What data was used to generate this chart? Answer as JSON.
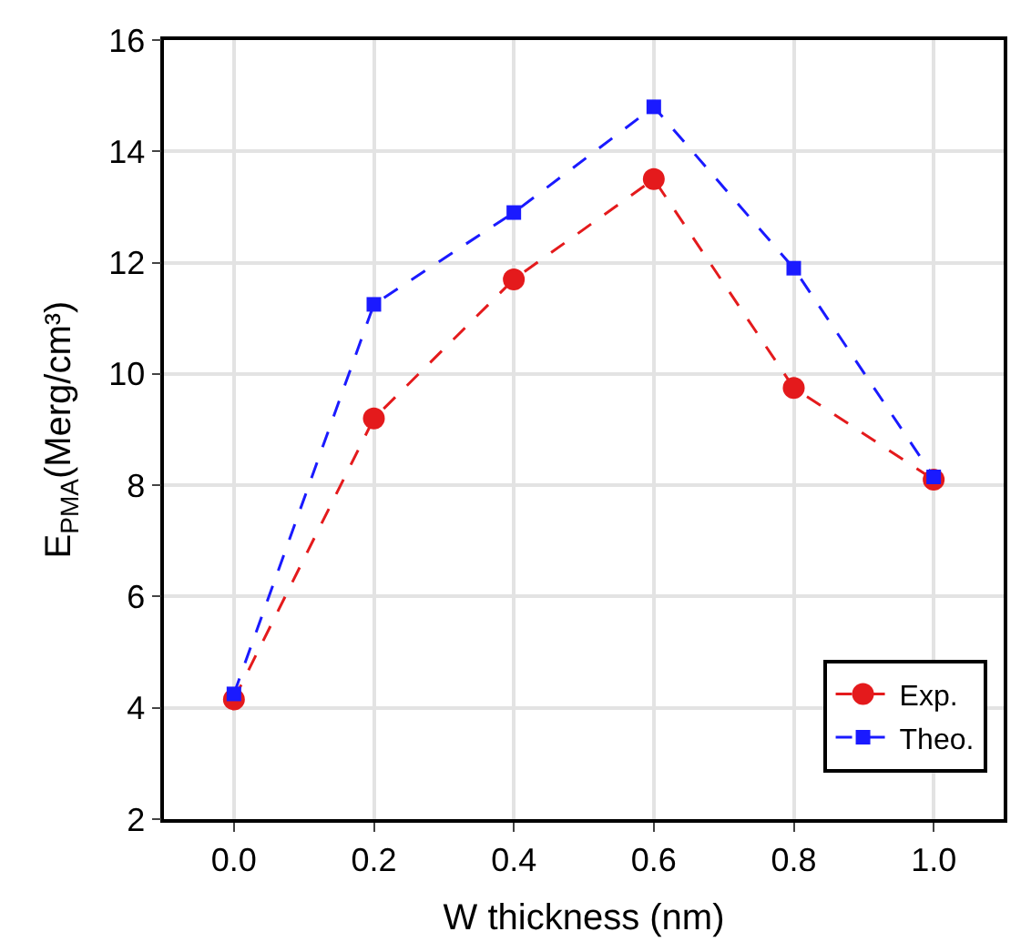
{
  "chart_data": {
    "type": "line",
    "xlabel": "W thickness (nm)",
    "ylabel": "E$_{PMA}$(Merg/cm³)",
    "x": [
      0.0,
      0.2,
      0.4,
      0.6,
      0.8,
      1.0
    ],
    "xlim": [
      -0.1,
      1.1
    ],
    "xticks": [
      {
        "value": 0,
        "label": "0.0"
      },
      0.2,
      0.4,
      0.6,
      0.8,
      {
        "value": 1,
        "label": "1.0"
      }
    ],
    "ylim": [
      2,
      16
    ],
    "yticks": [
      2,
      4,
      6,
      8,
      10,
      12,
      14,
      16
    ],
    "grid": true,
    "legend": "bottom right",
    "line_style": "dashed",
    "series": [
      {
        "name": "Exp.",
        "color": "#e41a1c",
        "marker": "circle",
        "values": [
          4.15,
          9.2,
          11.7,
          13.5,
          9.75,
          8.1
        ]
      },
      {
        "name": "Theo.",
        "color": "#1a1aff",
        "marker": "square",
        "values": [
          4.25,
          11.25,
          12.9,
          14.8,
          11.9,
          8.15
        ]
      }
    ]
  }
}
